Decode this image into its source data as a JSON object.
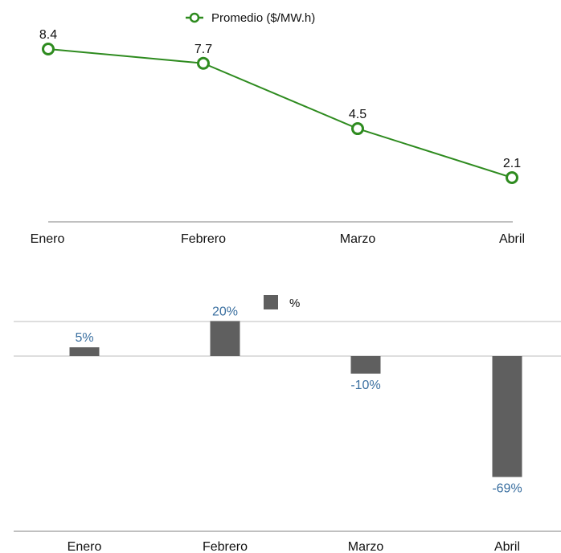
{
  "colors": {
    "line": "#2e8b1f",
    "bar": "#5f5f5f",
    "bar_label": "#3a6fa0",
    "axis": "#9a9a9a",
    "grid": "#bdbdbd"
  },
  "chart_data": [
    {
      "type": "line",
      "categories": [
        "Enero",
        "Febrero",
        "Marzo",
        "Abril"
      ],
      "series": [
        {
          "name": "Promedio ($/MW.h)",
          "values": [
            8.4,
            7.7,
            4.5,
            2.1
          ]
        }
      ],
      "data_labels": [
        "8.4",
        "7.7",
        "4.5",
        "2.1"
      ],
      "legend": "top-center",
      "marker": "hollow-circle",
      "grid": false
    },
    {
      "type": "bar",
      "categories": [
        "Enero",
        "Febrero",
        "Marzo",
        "Abril"
      ],
      "series": [
        {
          "name": "%",
          "values": [
            5,
            20,
            -10,
            -69
          ]
        }
      ],
      "data_labels": [
        "5%",
        "20%",
        "-10%",
        "-69%"
      ],
      "legend": "top-center",
      "grid": true
    }
  ]
}
